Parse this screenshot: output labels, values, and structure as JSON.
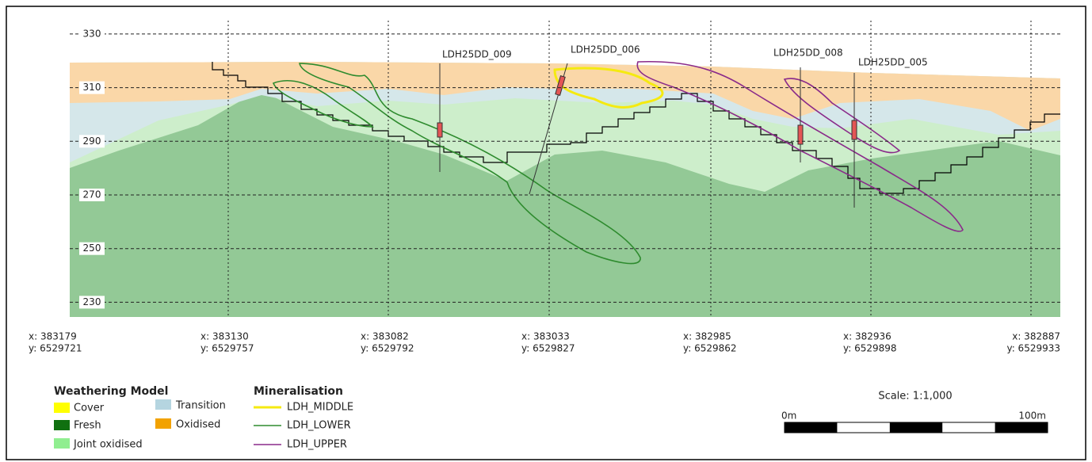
{
  "section": {
    "ylim": [
      224.5,
      335
    ],
    "yticks": [
      330,
      310,
      290,
      270,
      250,
      230
    ],
    "stations": [
      {
        "x": "x: 383179",
        "y": "y: 6529721"
      },
      {
        "x": "x: 383130",
        "y": "y: 6529757"
      },
      {
        "x": "x: 383082",
        "y": "y: 6529792"
      },
      {
        "x": "x: 383033",
        "y": "y: 6529827"
      },
      {
        "x": "x: 382985",
        "y": "y: 6529862"
      },
      {
        "x": "x: 382936",
        "y": "y: 6529898"
      },
      {
        "x": "x: 382887",
        "y": "y: 6529933"
      }
    ],
    "drillholes": [
      "LDH25DD_009",
      "LDH25DD_006",
      "LDH25DD_008",
      "LDH25DD_005"
    ]
  },
  "legend": {
    "weathering": {
      "title": "Weathering Model",
      "items": [
        "Cover",
        "Transition",
        "Fresh",
        "Oxidised",
        "Joint oxidised"
      ]
    },
    "mineralisation": {
      "title": "Mineralisation",
      "items": [
        "LDH_MIDDLE",
        "LDH_LOWER",
        "LDH_UPPER"
      ]
    }
  },
  "scale": {
    "title": "Scale: 1:1,000",
    "start": "0m",
    "end": "100m"
  }
}
